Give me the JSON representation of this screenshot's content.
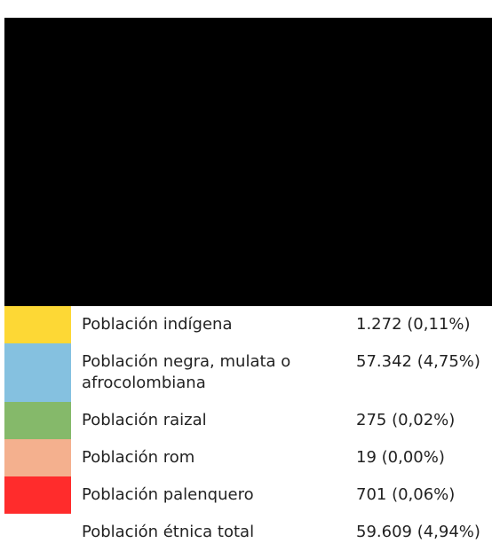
{
  "table": {
    "rows": [
      {
        "label": "Población indígena",
        "value": "1.272 (0,11%)",
        "color": "#fdd835"
      },
      {
        "label": "Población negra, mulata o afrocolombiana",
        "value": "57.342 (4,75%)",
        "color": "#85c1e0"
      },
      {
        "label": "Población raizal",
        "value": "275 (0,02%)",
        "color": "#85b96a"
      },
      {
        "label": "Población rom",
        "value": "19 (0,00%)",
        "color": "#f4b08e"
      },
      {
        "label": "Población palenquero",
        "value": "701 (0,06%)",
        "color": "#ff2c2c"
      },
      {
        "label": "Población étnica total",
        "value": "59.609 (4,94%)",
        "color": null
      }
    ]
  }
}
